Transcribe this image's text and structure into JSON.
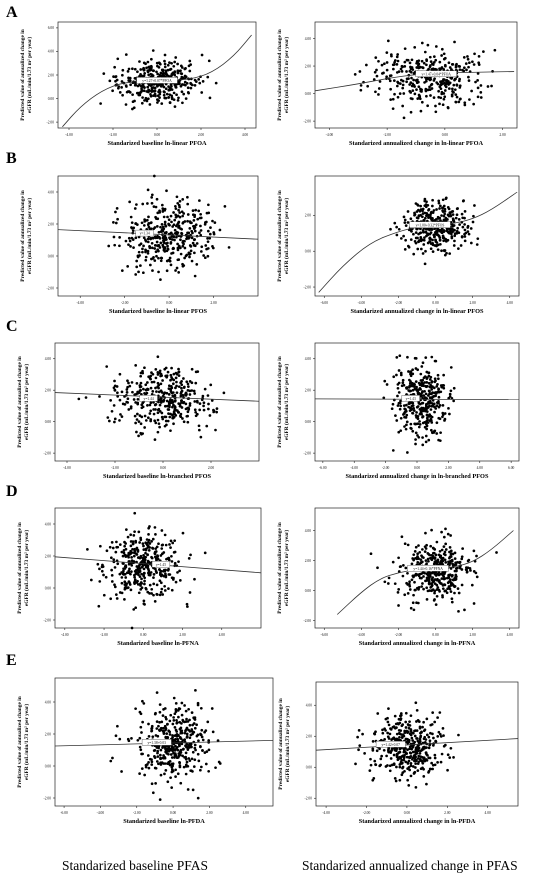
{
  "panel_letters": [
    "A",
    "B",
    "C",
    "D",
    "E"
  ],
  "footer": {
    "left": "Standarized baseline PFAS",
    "right": "Standarized annualized change in PFAS"
  },
  "ylabel": [
    "Predicted value of annualized change in",
    "eGFR (mL/min/1.73 m² per year)"
  ],
  "chart_data": [
    {
      "type": "scatter",
      "panel": "A",
      "side": "left",
      "xlabel": "Standarized baseline ln-linear PFOA",
      "xlim": [
        -4.5,
        4.5
      ],
      "ylim": [
        -2.5,
        6.5
      ],
      "xticks": [
        "-4.00",
        "-2.00",
        "0.00",
        "2.00",
        "4.00"
      ],
      "xtick_values": [
        -4,
        -2,
        0,
        2,
        4
      ],
      "yticks": [
        "-2.00",
        "0.00",
        "2.00",
        "4.00",
        "6.00"
      ],
      "ytick_values": [
        -2,
        0,
        2,
        4,
        6
      ],
      "fit": "cubic",
      "fit_points": [
        [
          -4.3,
          -2.4
        ],
        [
          -3.5,
          -0.7
        ],
        [
          -2.5,
          0.7
        ],
        [
          -1.5,
          1.4
        ],
        [
          0,
          1.5
        ],
        [
          1.5,
          1.6
        ],
        [
          2.5,
          2.2
        ],
        [
          3.5,
          3.6
        ],
        [
          4.3,
          5.4
        ]
      ],
      "cloud": {
        "cx": 0,
        "cy": 1.4,
        "sx": 0.9,
        "sy": 0.9,
        "n": 380,
        "seed": 11
      },
      "equation": "y=1.27+0.07*PFOA",
      "annotation_at": [
        0,
        1.5
      ]
    },
    {
      "type": "scatter",
      "panel": "A",
      "side": "right",
      "xlabel": "Standarized annualized change in ln-linear PFOA",
      "xlim": [
        -4.5,
        2.5
      ],
      "ylim": [
        -2.5,
        5.2
      ],
      "xticks": [
        "-4.00",
        "-2.00",
        "0.00",
        "2.00"
      ],
      "xtick_values": [
        -4,
        -2,
        0,
        2
      ],
      "yticks": [
        "-2.00",
        "0.00",
        "2.00",
        "4.00"
      ],
      "ytick_values": [
        -2,
        0,
        2,
        4
      ],
      "fit": "curve",
      "fit_points": [
        [
          -4.5,
          0.2
        ],
        [
          -3,
          0.7
        ],
        [
          -2,
          1.1
        ],
        [
          -1,
          1.4
        ],
        [
          0,
          1.5
        ],
        [
          1,
          1.55
        ],
        [
          2.4,
          1.6
        ]
      ],
      "cloud": {
        "cx": -0.5,
        "cy": 1.2,
        "sx": 0.9,
        "sy": 1.0,
        "n": 360,
        "seed": 12
      },
      "equation": "y=1.47+0.04*PFOA",
      "annotation_at": [
        -0.3,
        1.4
      ]
    },
    {
      "type": "scatter",
      "panel": "B",
      "side": "left",
      "xlabel": "Standarized baseline ln-linear PFOS",
      "xlim": [
        -5,
        4
      ],
      "ylim": [
        -2.5,
        5
      ],
      "xticks": [
        "-4.00",
        "-2.00",
        "0.00",
        "2.00"
      ],
      "xtick_values": [
        -4,
        -2,
        0,
        2
      ],
      "yticks": [
        "-2.00",
        "0.00",
        "2.00",
        "4.00"
      ],
      "ytick_values": [
        -2,
        0,
        2,
        4
      ],
      "fit": "linear",
      "fit_points": [
        [
          -5,
          1.65
        ],
        [
          4,
          1.05
        ]
      ],
      "cloud": {
        "cx": 0,
        "cy": 1.35,
        "sx": 1.0,
        "sy": 1.1,
        "n": 400,
        "seed": 21
      },
      "equation": "y=1.34",
      "annotation_at": [
        -1.1,
        1.4
      ]
    },
    {
      "type": "scatter",
      "panel": "B",
      "side": "right",
      "xlabel": "Standarized annualized change in ln-linear PFOS",
      "xlim": [
        -6.5,
        4.5
      ],
      "ylim": [
        -2.5,
        4.2
      ],
      "xticks": [
        "-6.00",
        "-4.00",
        "-2.00",
        "0.00",
        "2.00",
        "4.00"
      ],
      "xtick_values": [
        -6,
        -4,
        -2,
        0,
        2,
        4
      ],
      "yticks": [
        "-2.00",
        "0.00",
        "2.00"
      ],
      "ytick_values": [
        -2,
        0,
        2
      ],
      "fit": "cubic",
      "fit_points": [
        [
          -6.3,
          -2.3
        ],
        [
          -5,
          -0.8
        ],
        [
          -3.5,
          0.5
        ],
        [
          -2,
          1.1
        ],
        [
          -1,
          1.35
        ],
        [
          0,
          1.45
        ],
        [
          1,
          1.55
        ],
        [
          2,
          1.8
        ],
        [
          3,
          2.3
        ],
        [
          4.4,
          3.3
        ]
      ],
      "cloud": {
        "cx": 0,
        "cy": 1.4,
        "sx": 0.9,
        "sy": 0.6,
        "n": 380,
        "seed": 22
      },
      "equation": "y=1.00+0.32*PFOS",
      "annotation_at": [
        -0.3,
        1.45
      ]
    },
    {
      "type": "scatter",
      "panel": "C",
      "side": "left",
      "xlabel": "Standarized baseline ln-branched PFOS",
      "xlim": [
        -4.5,
        4
      ],
      "ylim": [
        -2.5,
        5
      ],
      "xticks": [
        "-4.00",
        "-2.00",
        "0.00",
        "2.00"
      ],
      "xtick_values": [
        -4,
        -2,
        0,
        2
      ],
      "yticks": [
        "-2.00",
        "0.00",
        "2.00",
        "4.00"
      ],
      "ytick_values": [
        -2,
        0,
        2,
        4
      ],
      "fit": "linear",
      "fit_points": [
        [
          -4.5,
          1.85
        ],
        [
          4,
          1.3
        ]
      ],
      "cloud": {
        "cx": 0,
        "cy": 1.4,
        "sx": 1.0,
        "sy": 1.0,
        "n": 380,
        "seed": 31
      },
      "equation": "y=1.44",
      "annotation_at": [
        -0.6,
        1.45
      ]
    },
    {
      "type": "scatter",
      "panel": "C",
      "side": "right",
      "xlabel": "Standarized annualized change in ln-branched PFOS",
      "xlim": [
        -6.5,
        6.5
      ],
      "ylim": [
        -2.5,
        5
      ],
      "xticks": [
        "-6.00",
        "-4.00",
        "-2.00",
        "0.00",
        "2.00",
        "4.00",
        "6.00"
      ],
      "xtick_values": [
        -6,
        -4,
        -2,
        0,
        2,
        4,
        6
      ],
      "yticks": [
        "-2.00",
        "0.00",
        "2.00",
        "4.00"
      ],
      "ytick_values": [
        -2,
        0,
        2,
        4
      ],
      "fit": "linear",
      "fit_points": [
        [
          -6.5,
          1.45
        ],
        [
          6.5,
          1.4
        ]
      ],
      "cloud": {
        "cx": 0.2,
        "cy": 1.3,
        "sx": 0.8,
        "sy": 1.1,
        "n": 380,
        "seed": 32
      },
      "equation": "y=1.43",
      "annotation_at": [
        -0.4,
        1.45
      ]
    },
    {
      "type": "scatter",
      "panel": "D",
      "side": "left",
      "xlabel": "Standarized baseline ln-PFNA",
      "xlim": [
        -4.5,
        6
      ],
      "ylim": [
        -2.5,
        5
      ],
      "xticks": [
        "-4.00",
        "-2.00",
        "0.00",
        "2.00",
        "4.00"
      ],
      "xtick_values": [
        -4,
        -2,
        0,
        2,
        4
      ],
      "yticks": [
        "-2.00",
        "0.00",
        "2.00",
        "4.00"
      ],
      "ytick_values": [
        -2,
        0,
        2,
        4
      ],
      "fit": "linear",
      "fit_points": [
        [
          -4.5,
          1.95
        ],
        [
          6,
          0.95
        ]
      ],
      "cloud": {
        "cx": 0,
        "cy": 1.4,
        "sx": 1.0,
        "sy": 1.0,
        "n": 390,
        "seed": 41
      },
      "equation": "y=1.45",
      "annotation_at": [
        0.9,
        1.45
      ]
    },
    {
      "type": "scatter",
      "panel": "D",
      "side": "right",
      "xlabel": "Standarized annualized change in ln-PFNA",
      "xlim": [
        -6.5,
        4.5
      ],
      "ylim": [
        -2.5,
        5.5
      ],
      "xticks": [
        "-6.00",
        "-4.00",
        "-2.00",
        "0.00",
        "2.00",
        "4.00"
      ],
      "xtick_values": [
        -6,
        -4,
        -2,
        0,
        2,
        4
      ],
      "yticks": [
        "-2.00",
        "0.00",
        "2.00",
        "4.00"
      ],
      "ytick_values": [
        -2,
        0,
        2,
        4
      ],
      "fit": "cubic",
      "fit_points": [
        [
          -5.3,
          -1.6
        ],
        [
          -4,
          -0.1
        ],
        [
          -3,
          0.8
        ],
        [
          -2,
          1.2
        ],
        [
          -1,
          1.4
        ],
        [
          0,
          1.45
        ],
        [
          1,
          1.55
        ],
        [
          2,
          1.9
        ],
        [
          3,
          2.7
        ],
        [
          4.2,
          4.0
        ]
      ],
      "cloud": {
        "cx": 0,
        "cy": 1.3,
        "sx": 1.0,
        "sy": 1.0,
        "n": 390,
        "seed": 42
      },
      "equation": "y=1.44+0.16*PFNA",
      "annotation_at": [
        -0.4,
        1.45
      ]
    },
    {
      "type": "scatter",
      "panel": "E",
      "side": "left",
      "xlabel": "Standarized baseline ln-PFDA",
      "xlim": [
        -6.5,
        5.5
      ],
      "ylim": [
        -2.5,
        5.5
      ],
      "xticks": [
        "-6.00",
        "-4.00",
        "-2.00",
        "0.00",
        "2.00",
        "4.00"
      ],
      "xtick_values": [
        -6,
        -4,
        -2,
        0,
        2,
        4
      ],
      "yticks": [
        "-2.00",
        "0.00",
        "2.00",
        "4.00"
      ],
      "ytick_values": [
        -2,
        0,
        2,
        4
      ],
      "fit": "linear",
      "fit_points": [
        [
          -6.5,
          1.25
        ],
        [
          5.5,
          1.6
        ]
      ],
      "cloud": {
        "cx": 0,
        "cy": 1.4,
        "sx": 0.95,
        "sy": 1.15,
        "n": 420,
        "seed": 51
      },
      "equation": "y=1.38+0.03",
      "annotation_at": [
        -0.9,
        1.45
      ]
    },
    {
      "type": "scatter",
      "panel": "E",
      "side": "right",
      "xlabel": "Standarized annualized change in ln-PFDA",
      "xlim": [
        -4.5,
        5.5
      ],
      "ylim": [
        -2.5,
        5.5
      ],
      "xticks": [
        "-4.00",
        "-2.00",
        "0.00",
        "2.00",
        "4.00"
      ],
      "xtick_values": [
        -4,
        -2,
        0,
        2,
        4
      ],
      "yticks": [
        "-2.00",
        "0.00",
        "2.00",
        "4.00"
      ],
      "ytick_values": [
        -2,
        0,
        2,
        4
      ],
      "fit": "linear",
      "fit_points": [
        [
          -4.5,
          1.1
        ],
        [
          5.5,
          1.85
        ]
      ],
      "cloud": {
        "cx": 0,
        "cy": 1.35,
        "sx": 0.9,
        "sy": 1.0,
        "n": 400,
        "seed": 52
      },
      "equation": "y=1.42+0.07",
      "annotation_at": [
        -0.8,
        1.45
      ]
    }
  ]
}
